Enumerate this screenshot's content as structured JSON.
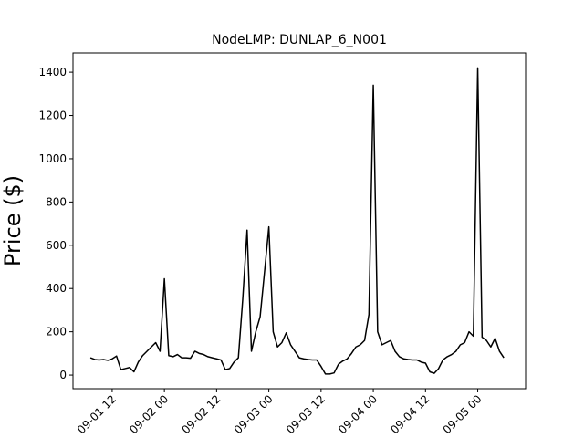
{
  "chart_data": {
    "type": "line",
    "title": "NodeLMP: DUNLAP_6_N001",
    "y_label": "Price ($)",
    "x": [
      "09-01 07",
      "09-01 08",
      "09-01 09",
      "09-01 10",
      "09-01 11",
      "09-01 12",
      "09-01 13",
      "09-01 14",
      "09-01 15",
      "09-01 16",
      "09-01 17",
      "09-01 18",
      "09-01 19",
      "09-01 20",
      "09-01 21",
      "09-01 22",
      "09-01 23",
      "09-02 00",
      "09-02 01",
      "09-02 02",
      "09-02 03",
      "09-02 04",
      "09-02 05",
      "09-02 06",
      "09-02 07",
      "09-02 08",
      "09-02 09",
      "09-02 10",
      "09-02 11",
      "09-02 12",
      "09-02 13",
      "09-02 14",
      "09-02 15",
      "09-02 16",
      "09-02 17",
      "09-02 18",
      "09-02 19",
      "09-02 20",
      "09-02 21",
      "09-02 22",
      "09-02 23",
      "09-03 00",
      "09-03 01",
      "09-03 02",
      "09-03 03",
      "09-03 04",
      "09-03 05",
      "09-03 06",
      "09-03 07",
      "09-03 08",
      "09-03 09",
      "09-03 10",
      "09-03 11",
      "09-03 12",
      "09-03 13",
      "09-03 14",
      "09-03 15",
      "09-03 16",
      "09-03 17",
      "09-03 18",
      "09-03 19",
      "09-03 20",
      "09-03 21",
      "09-03 22",
      "09-03 23",
      "09-04 00",
      "09-04 01",
      "09-04 02",
      "09-04 03",
      "09-04 04",
      "09-04 05",
      "09-04 06",
      "09-04 07",
      "09-04 08",
      "09-04 09",
      "09-04 10",
      "09-04 11",
      "09-04 12",
      "09-04 13",
      "09-04 14",
      "09-04 15",
      "09-04 16",
      "09-04 17",
      "09-04 18",
      "09-04 19",
      "09-04 20",
      "09-04 21",
      "09-04 22",
      "09-04 23",
      "09-05 00",
      "09-05 01",
      "09-05 02",
      "09-05 03",
      "09-05 04",
      "09-05 05",
      "09-05 06"
    ],
    "series": [
      {
        "color": "#000000",
        "values": [
          80,
          72,
          70,
          72,
          68,
          75,
          88,
          25,
          30,
          35,
          15,
          60,
          90,
          110,
          130,
          150,
          110,
          445,
          90,
          85,
          95,
          80,
          80,
          78,
          110,
          100,
          95,
          85,
          80,
          75,
          70,
          25,
          30,
          60,
          80,
          350,
          670,
          110,
          200,
          270,
          475,
          685,
          200,
          130,
          150,
          195,
          140,
          110,
          80,
          75,
          72,
          70,
          70,
          40,
          5,
          5,
          10,
          50,
          65,
          75,
          100,
          130,
          140,
          160,
          280,
          1340,
          200,
          140,
          150,
          160,
          110,
          85,
          75,
          72,
          70,
          70,
          60,
          55,
          15,
          8,
          30,
          70,
          85,
          95,
          110,
          140,
          150,
          200,
          180,
          1420,
          175,
          160,
          130,
          170,
          110,
          80
        ]
      }
    ],
    "xlim": [
      "09-01 03",
      "09-05 11"
    ],
    "xticks": [
      "09-01 12",
      "09-02 00",
      "09-02 12",
      "09-03 00",
      "09-03 12",
      "09-04 00",
      "09-04 12",
      "09-05 00"
    ],
    "ylim": [
      -63,
      1489
    ],
    "yticks": [
      0,
      200,
      400,
      600,
      800,
      1000,
      1200,
      1400
    ]
  }
}
